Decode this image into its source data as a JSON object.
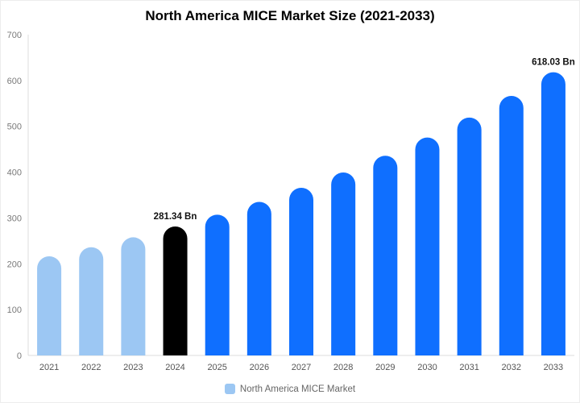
{
  "chart_data": {
    "type": "bar",
    "title": "North America MICE Market Size (2021-2033)",
    "categories": [
      "2021",
      "2022",
      "2023",
      "2024",
      "2025",
      "2026",
      "2027",
      "2028",
      "2029",
      "2030",
      "2031",
      "2032",
      "2033"
    ],
    "series": [
      {
        "name": "North America MICE Market",
        "values": [
          216.4,
          236.2,
          257.8,
          281.34,
          307.1,
          335.1,
          365.8,
          399.2,
          435.7,
          475.5,
          519.0,
          566.4,
          618.03
        ]
      }
    ],
    "ylim": [
      0,
      700
    ],
    "ytick_interval": 100,
    "grid": false,
    "legend_position": "bottom",
    "bar_colors": [
      "#9cc7f3",
      "#9cc7f3",
      "#9cc7f3",
      "#000000",
      "#0f6fff",
      "#0f6fff",
      "#0f6fff",
      "#0f6fff",
      "#0f6fff",
      "#0f6fff",
      "#0f6fff",
      "#0f6fff",
      "#0f6fff"
    ],
    "annotations": [
      {
        "category": "2024",
        "text": "281.34 Bn"
      },
      {
        "category": "2033",
        "text": "618.03 Bn"
      }
    ],
    "axis_color": "#dcdcdc",
    "tick_label_color": "#7a7a7a",
    "xtick_label_color": "#555555",
    "data_label_color": "#111111"
  },
  "legend": {
    "label": "North America MICE Market",
    "swatch_color": "#9cc7f3"
  }
}
